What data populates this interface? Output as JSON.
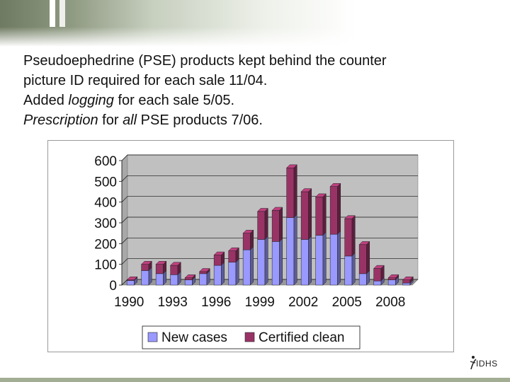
{
  "slide": {
    "lines": [
      [
        {
          "text": "Pseudoephedrine (PSE) products kept behind the counter",
          "italic": false
        }
      ],
      [
        {
          "text": "picture ID required for each sale 11/04.",
          "italic": false
        }
      ],
      [
        {
          "text": "Added ",
          "italic": false
        },
        {
          "text": "logging",
          "italic": true
        },
        {
          "text": " for each sale 5/05.",
          "italic": false
        }
      ],
      [
        {
          "text": "Prescription",
          "italic": true
        },
        {
          "text": " for ",
          "italic": false
        },
        {
          "text": "all",
          "italic": true
        },
        {
          "text": " PSE products 7/06.",
          "italic": false
        }
      ]
    ],
    "logo_text": "IDHS"
  },
  "chart_data": {
    "type": "bar",
    "stacked": true,
    "style": "3d",
    "x": [
      1990,
      1991,
      1992,
      1993,
      1994,
      1995,
      1996,
      1997,
      1998,
      1999,
      2000,
      2001,
      2002,
      2003,
      2004,
      2005,
      2006,
      2007,
      2008,
      2009
    ],
    "x_tick_labels": [
      "1990",
      "1993",
      "1996",
      "1999",
      "2002",
      "2005",
      "2008"
    ],
    "series": [
      {
        "name": "New cases",
        "color": "#9999ff",
        "values": [
          22,
          70,
          55,
          50,
          25,
          55,
          95,
          110,
          170,
          220,
          210,
          325,
          220,
          240,
          245,
          140,
          55,
          20,
          25,
          10
        ]
      },
      {
        "name": "Certified clean",
        "color": "#993366",
        "values": [
          3,
          30,
          45,
          45,
          10,
          10,
          50,
          55,
          80,
          135,
          150,
          240,
          230,
          185,
          230,
          180,
          140,
          60,
          10,
          15
        ]
      }
    ],
    "ylim": [
      0,
      600
    ],
    "yticks": [
      0,
      100,
      200,
      300,
      400,
      500,
      600
    ],
    "grid": true,
    "plot_background": "#c0c0c0",
    "legend_position": "bottom"
  }
}
